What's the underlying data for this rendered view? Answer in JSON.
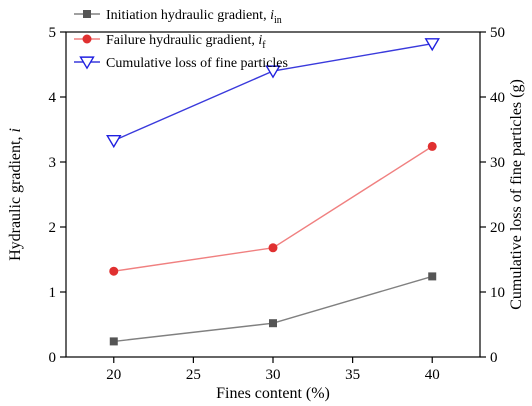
{
  "chart_data": {
    "type": "line",
    "xlabel": "Fines content (%)",
    "ylabel_left": "Hydraulic gradient, ",
    "ylabel_left_symbol": "i",
    "ylabel_right": "Cumulative loss of fine particles (g)",
    "xlim": [
      17,
      43
    ],
    "ylim_left": [
      0,
      5
    ],
    "ylim_right": [
      0,
      50
    ],
    "x_ticks": [
      "20",
      "25",
      "30",
      "35",
      "40"
    ],
    "y_left_ticks": [
      "0",
      "1",
      "2",
      "3",
      "4",
      "5"
    ],
    "y_right_ticks": [
      "0",
      "10",
      "20",
      "30",
      "40",
      "50"
    ],
    "legend_position": "top-left",
    "grid": false,
    "series": [
      {
        "name": "Initiation hydraulic gradient, ",
        "name_symbol": "i",
        "name_subscript": "in",
        "axis": "left",
        "marker": "square",
        "color": "#808080",
        "marker_color": "#555555",
        "x": [
          20,
          30,
          40
        ],
        "y": [
          0.24,
          0.52,
          1.24
        ]
      },
      {
        "name": "Failure hydraulic gradient, ",
        "name_symbol": "i",
        "name_subscript": "f",
        "axis": "left",
        "marker": "circle",
        "color": "#f08080",
        "marker_color": "#e03030",
        "x": [
          20,
          30,
          40
        ],
        "y": [
          1.32,
          1.68,
          3.24
        ]
      },
      {
        "name": "Cumulative loss of fine particles",
        "axis": "right",
        "marker": "triangle-down",
        "color": "#3a3adc",
        "marker_color": "#2020e0",
        "x": [
          20,
          30,
          40
        ],
        "y": [
          33.3,
          44,
          48.2
        ]
      }
    ]
  }
}
